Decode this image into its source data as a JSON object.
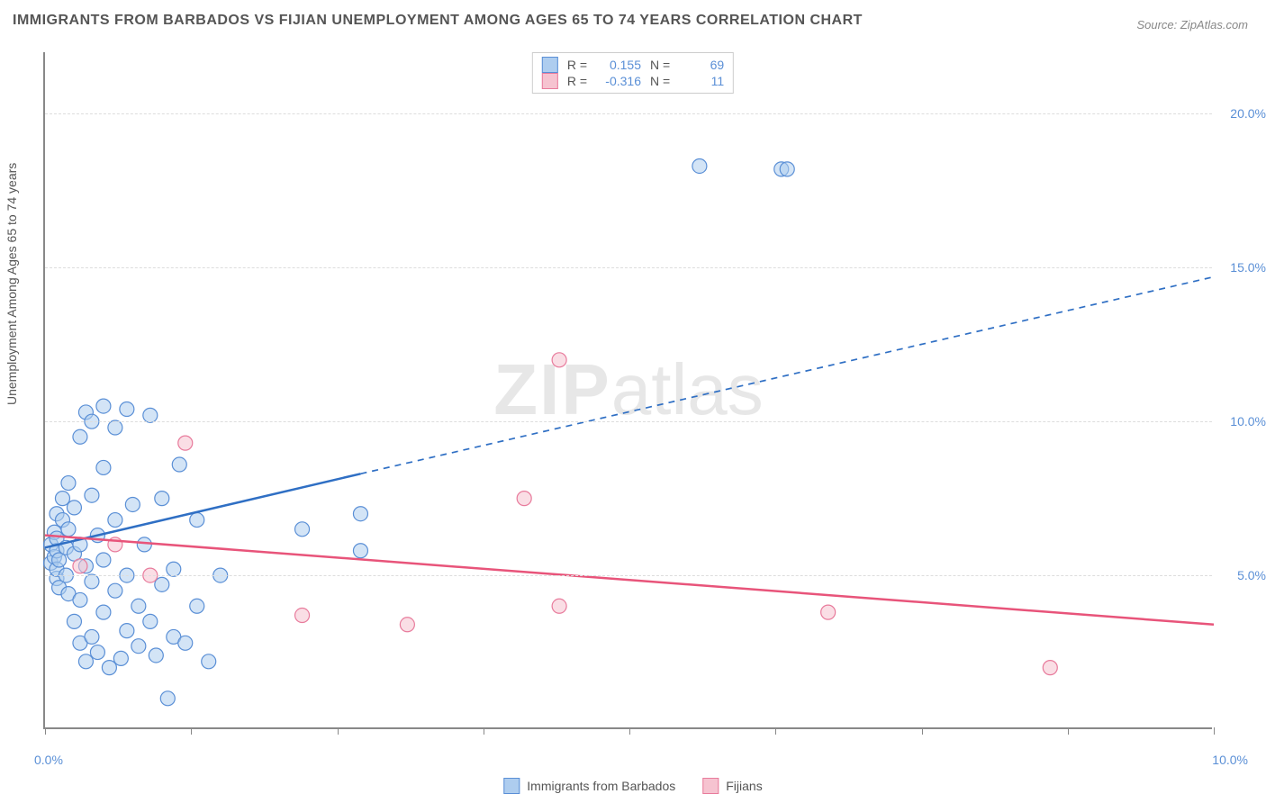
{
  "title": "IMMIGRANTS FROM BARBADOS VS FIJIAN UNEMPLOYMENT AMONG AGES 65 TO 74 YEARS CORRELATION CHART",
  "source": "Source: ZipAtlas.com",
  "y_axis_label": "Unemployment Among Ages 65 to 74 years",
  "watermark": {
    "bold": "ZIP",
    "rest": "atlas"
  },
  "chart": {
    "type": "scatter",
    "background_color": "#ffffff",
    "grid_color": "#dddddd",
    "axis_color": "#888888",
    "xlim": [
      0,
      10
    ],
    "ylim": [
      0,
      22
    ],
    "x_tick_positions": [
      0,
      1.25,
      2.5,
      3.75,
      5,
      6.25,
      7.5,
      8.75,
      10
    ],
    "x_tick_labels_visible": {
      "left": "0.0%",
      "right": "10.0%"
    },
    "y_ticks": [
      {
        "value": 5,
        "label": "5.0%"
      },
      {
        "value": 10,
        "label": "10.0%"
      },
      {
        "value": 15,
        "label": "15.0%"
      },
      {
        "value": 20,
        "label": "20.0%"
      }
    ],
    "marker_radius": 8,
    "series": [
      {
        "name": "Immigrants from Barbados",
        "color_fill": "#aecdef",
        "color_stroke": "#5a8fd6",
        "fill_opacity": 0.55,
        "R": "0.155",
        "N": "69",
        "trend": {
          "solid": {
            "x1": 0,
            "y1": 5.9,
            "x2": 2.7,
            "y2": 8.3
          },
          "dashed": {
            "x1": 2.7,
            "y1": 8.3,
            "x2": 10,
            "y2": 14.7
          },
          "color": "#2f6fc4",
          "width": 2.5
        },
        "points": [
          [
            0.05,
            5.4
          ],
          [
            0.05,
            6.0
          ],
          [
            0.08,
            5.6
          ],
          [
            0.08,
            6.4
          ],
          [
            0.1,
            4.9
          ],
          [
            0.1,
            5.2
          ],
          [
            0.1,
            5.8
          ],
          [
            0.1,
            6.2
          ],
          [
            0.1,
            7.0
          ],
          [
            0.12,
            4.6
          ],
          [
            0.12,
            5.5
          ],
          [
            0.15,
            6.8
          ],
          [
            0.15,
            7.5
          ],
          [
            0.18,
            5.0
          ],
          [
            0.18,
            5.9
          ],
          [
            0.2,
            4.4
          ],
          [
            0.2,
            6.5
          ],
          [
            0.2,
            8.0
          ],
          [
            0.25,
            3.5
          ],
          [
            0.25,
            5.7
          ],
          [
            0.25,
            7.2
          ],
          [
            0.3,
            2.8
          ],
          [
            0.3,
            4.2
          ],
          [
            0.3,
            6.0
          ],
          [
            0.3,
            9.5
          ],
          [
            0.35,
            2.2
          ],
          [
            0.35,
            5.3
          ],
          [
            0.35,
            10.3
          ],
          [
            0.4,
            3.0
          ],
          [
            0.4,
            4.8
          ],
          [
            0.4,
            7.6
          ],
          [
            0.4,
            10.0
          ],
          [
            0.45,
            2.5
          ],
          [
            0.45,
            6.3
          ],
          [
            0.5,
            3.8
          ],
          [
            0.5,
            5.5
          ],
          [
            0.5,
            8.5
          ],
          [
            0.5,
            10.5
          ],
          [
            0.55,
            2.0
          ],
          [
            0.6,
            4.5
          ],
          [
            0.6,
            6.8
          ],
          [
            0.6,
            9.8
          ],
          [
            0.65,
            2.3
          ],
          [
            0.7,
            3.2
          ],
          [
            0.7,
            5.0
          ],
          [
            0.7,
            10.4
          ],
          [
            0.75,
            7.3
          ],
          [
            0.8,
            2.7
          ],
          [
            0.8,
            4.0
          ],
          [
            0.85,
            6.0
          ],
          [
            0.9,
            3.5
          ],
          [
            0.9,
            10.2
          ],
          [
            0.95,
            2.4
          ],
          [
            1.0,
            4.7
          ],
          [
            1.0,
            7.5
          ],
          [
            1.05,
            1.0
          ],
          [
            1.1,
            3.0
          ],
          [
            1.1,
            5.2
          ],
          [
            1.15,
            8.6
          ],
          [
            1.2,
            2.8
          ],
          [
            1.3,
            4.0
          ],
          [
            1.3,
            6.8
          ],
          [
            1.4,
            2.2
          ],
          [
            1.5,
            5.0
          ],
          [
            2.2,
            6.5
          ],
          [
            2.7,
            7.0
          ],
          [
            2.7,
            5.8
          ],
          [
            5.6,
            18.3
          ],
          [
            6.3,
            18.2
          ],
          [
            6.35,
            18.2
          ]
        ]
      },
      {
        "name": "Fijians",
        "color_fill": "#f6c3d0",
        "color_stroke": "#e87b9c",
        "fill_opacity": 0.55,
        "R": "-0.316",
        "N": "11",
        "trend": {
          "solid": {
            "x1": 0,
            "y1": 6.3,
            "x2": 10,
            "y2": 3.4
          },
          "color": "#e8547a",
          "width": 2.5
        },
        "points": [
          [
            0.3,
            5.3
          ],
          [
            0.9,
            5.0
          ],
          [
            1.2,
            9.3
          ],
          [
            2.2,
            3.7
          ],
          [
            3.1,
            3.4
          ],
          [
            4.1,
            7.5
          ],
          [
            4.4,
            4.0
          ],
          [
            4.4,
            12.0
          ],
          [
            6.7,
            3.8
          ],
          [
            8.6,
            2.0
          ],
          [
            0.6,
            6.0
          ]
        ]
      }
    ]
  },
  "bottom_legend": [
    {
      "label": "Immigrants from Barbados",
      "fill": "#aecdef",
      "stroke": "#5a8fd6"
    },
    {
      "label": "Fijians",
      "fill": "#f6c3d0",
      "stroke": "#e87b9c"
    }
  ]
}
